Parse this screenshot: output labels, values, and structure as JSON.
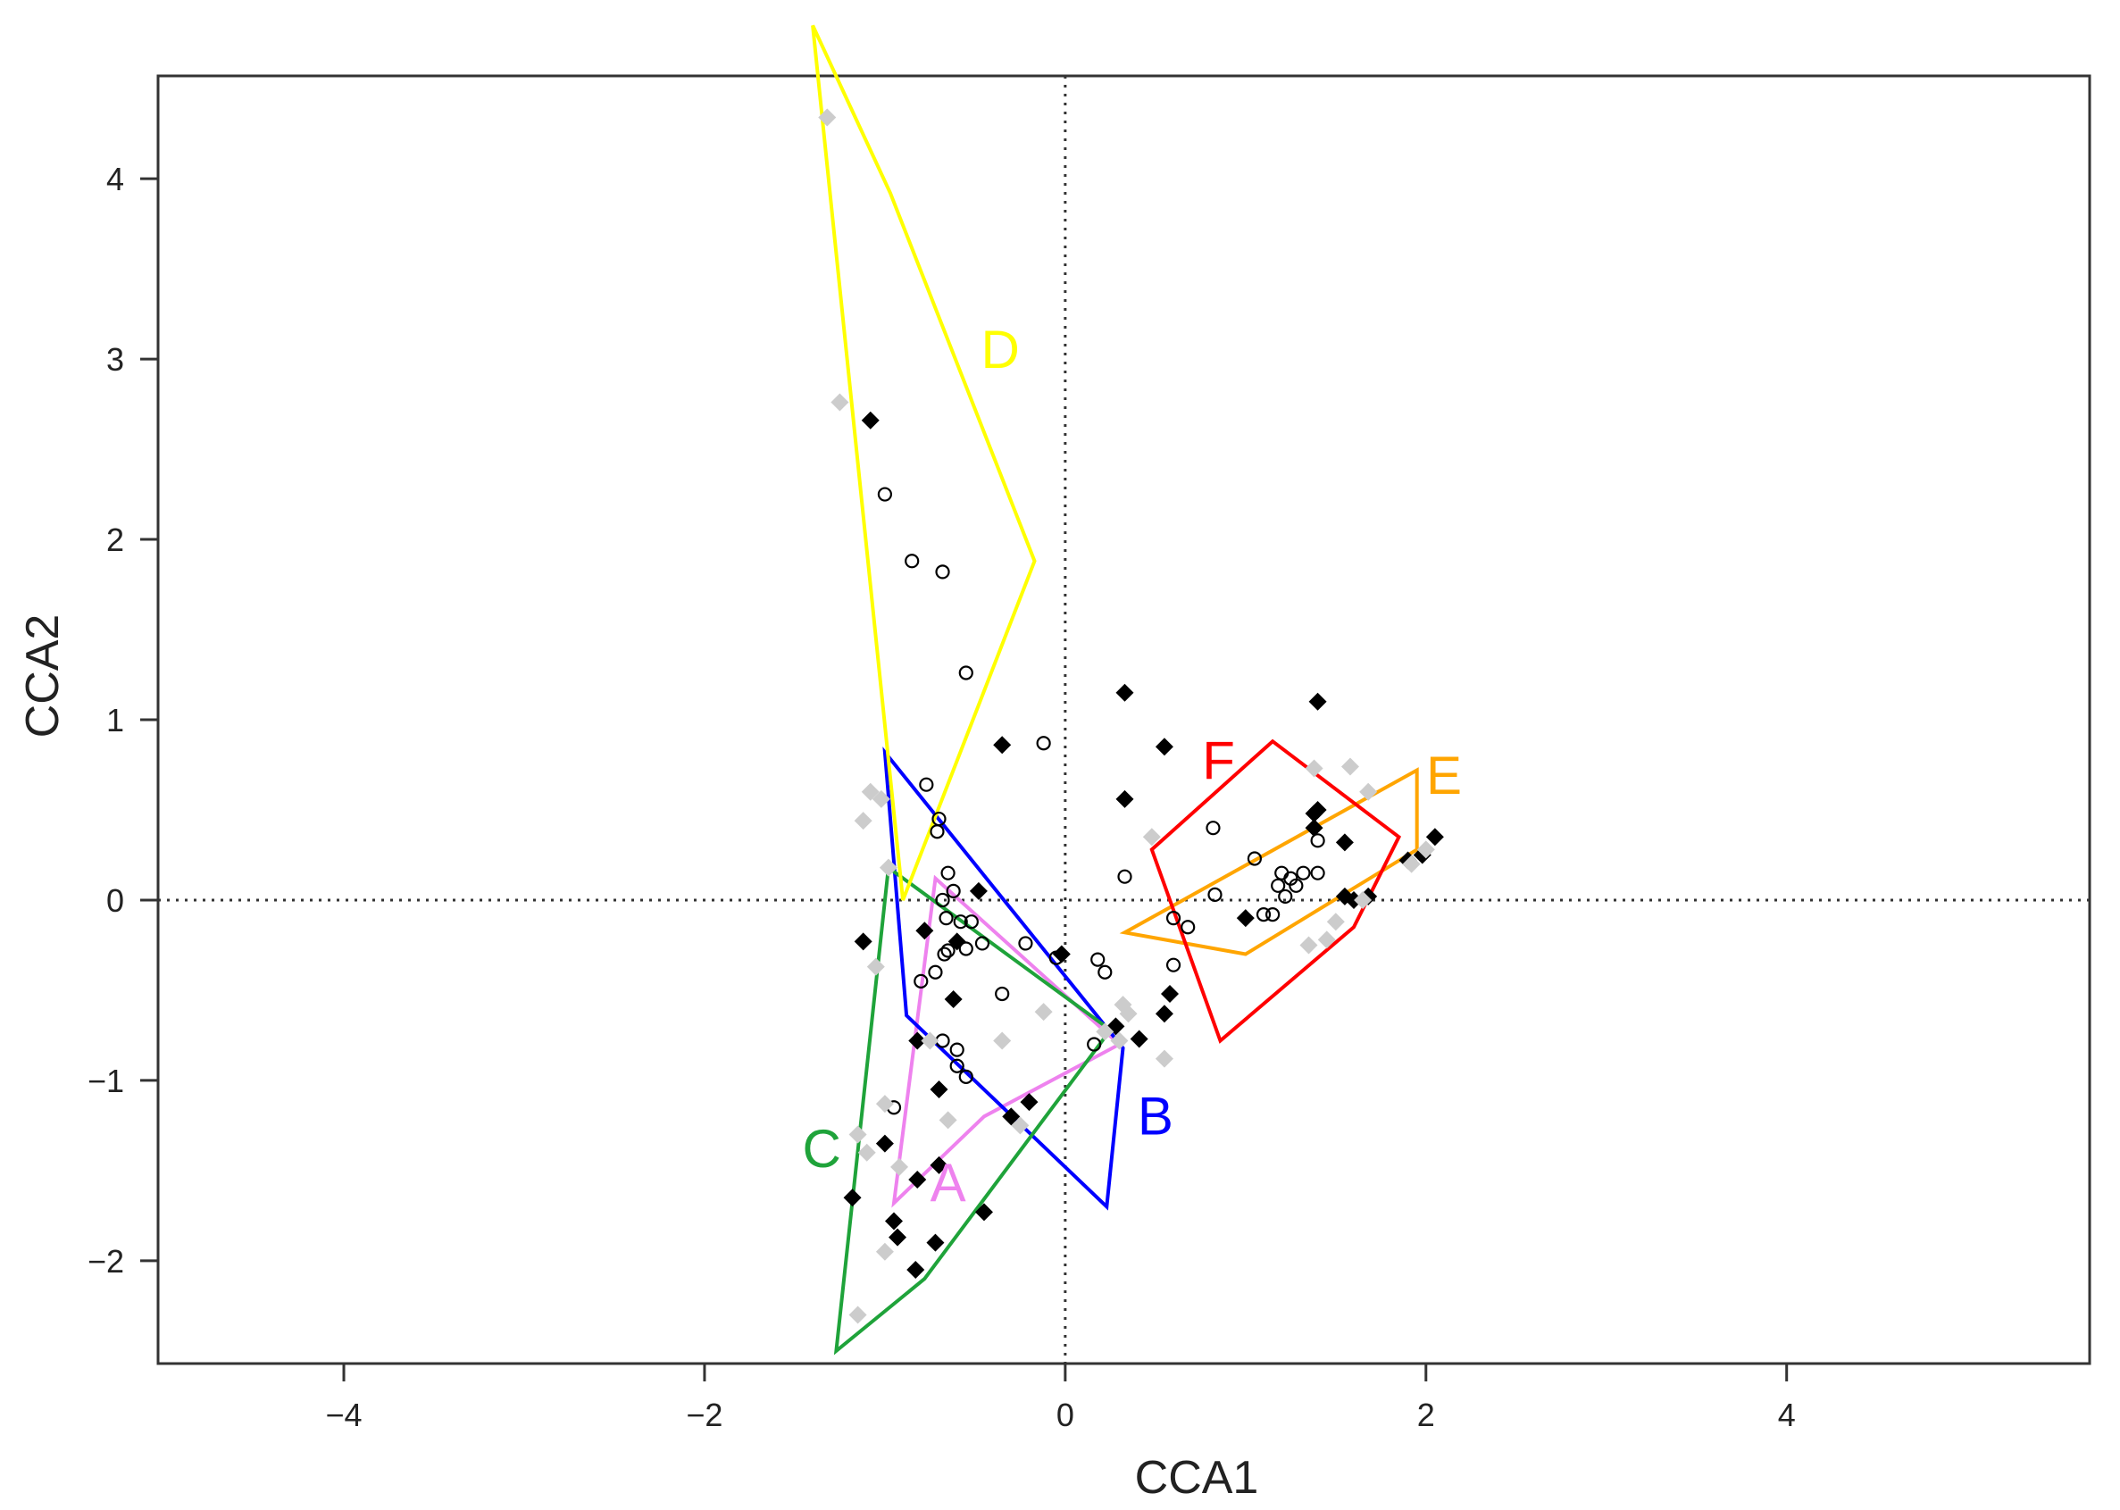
{
  "chart_data": {
    "type": "scatter",
    "title": "",
    "xlabel": "CCA1",
    "ylabel": "CCA2",
    "xlim": [
      -5.03,
      5.68
    ],
    "ylim": [
      -2.57,
      4.57
    ],
    "xticks": [
      -4,
      -2,
      0,
      2,
      4
    ],
    "yticks": [
      -2,
      -1,
      0,
      1,
      2,
      3,
      4
    ],
    "xtick_labels": [
      "−4",
      "−2",
      "0",
      "2",
      "4"
    ],
    "ytick_labels": [
      "−2",
      "−1",
      "0",
      "1",
      "2",
      "3",
      "4"
    ],
    "reference_lines": {
      "x": 0,
      "y": 0,
      "style": "dotted"
    },
    "grid": false,
    "groups": [
      {
        "name": "A",
        "color": "#ee82ee",
        "label_pos": [
          -0.65,
          -1.67
        ],
        "hull": [
          [
            -0.95,
            -1.68
          ],
          [
            -0.72,
            0.12
          ],
          [
            0.3,
            -0.8
          ],
          [
            -0.45,
            -1.2
          ]
        ]
      },
      {
        "name": "B",
        "color": "#0000ff",
        "label_pos": [
          0.5,
          -1.3
        ],
        "hull": [
          [
            -1.0,
            0.82
          ],
          [
            0.32,
            -0.82
          ],
          [
            0.23,
            -1.7
          ],
          [
            -0.88,
            -0.64
          ]
        ]
      },
      {
        "name": "C",
        "color": "#1fa33a",
        "label_pos": [
          -1.35,
          -1.48
        ],
        "hull": [
          [
            -0.98,
            0.18
          ],
          [
            0.25,
            -0.72
          ],
          [
            -0.78,
            -2.1
          ],
          [
            -1.27,
            -2.5
          ]
        ]
      },
      {
        "name": "D",
        "color": "#ffff00",
        "label_pos": [
          -0.36,
          2.95
        ],
        "hull": [
          [
            -1.4,
            4.85
          ],
          [
            -0.97,
            3.92
          ],
          [
            -0.17,
            1.88
          ],
          [
            -0.9,
            0.0
          ]
        ]
      },
      {
        "name": "E",
        "color": "#ffa500",
        "label_pos": [
          2.1,
          0.59
        ],
        "hull": [
          [
            0.33,
            -0.18
          ],
          [
            1.95,
            0.72
          ],
          [
            1.95,
            0.28
          ],
          [
            1.0,
            -0.3
          ]
        ]
      },
      {
        "name": "F",
        "color": "#ff0000",
        "label_pos": [
          0.85,
          0.67
        ],
        "hull": [
          [
            0.48,
            0.28
          ],
          [
            1.15,
            0.88
          ],
          [
            1.85,
            0.35
          ],
          [
            1.6,
            -0.15
          ],
          [
            0.86,
            -0.78
          ]
        ]
      }
    ],
    "series": [
      {
        "name": "filled diamonds",
        "marker": "diamond",
        "color": "#000000",
        "points": [
          [
            -1.08,
            2.66
          ],
          [
            -0.35,
            0.86
          ],
          [
            0.33,
            1.15
          ],
          [
            0.55,
            0.85
          ],
          [
            1.4,
            1.1
          ],
          [
            0.33,
            0.56
          ],
          [
            1.38,
            0.48
          ],
          [
            1.4,
            0.5
          ],
          [
            1.38,
            0.4
          ],
          [
            1.55,
            0.32
          ],
          [
            1.55,
            0.02
          ],
          [
            1.6,
            0.0
          ],
          [
            1.68,
            0.02
          ],
          [
            1.9,
            0.22
          ],
          [
            1.98,
            0.25
          ],
          [
            2.05,
            0.35
          ],
          [
            1.0,
            -0.1
          ],
          [
            0.58,
            -0.52
          ],
          [
            0.55,
            -0.63
          ],
          [
            0.41,
            -0.77
          ],
          [
            0.28,
            -0.7
          ],
          [
            -1.12,
            -0.23
          ],
          [
            -0.78,
            -0.17
          ],
          [
            -0.6,
            -0.23
          ],
          [
            -0.48,
            0.05
          ],
          [
            -0.62,
            -0.55
          ],
          [
            -0.82,
            -0.78
          ],
          [
            -0.7,
            -1.05
          ],
          [
            -0.2,
            -1.12
          ],
          [
            -0.3,
            -1.2
          ],
          [
            -1.0,
            -1.35
          ],
          [
            -0.7,
            -1.47
          ],
          [
            -0.82,
            -1.55
          ],
          [
            -1.18,
            -1.65
          ],
          [
            -0.95,
            -1.78
          ],
          [
            -0.45,
            -1.73
          ],
          [
            -0.93,
            -1.87
          ],
          [
            -0.72,
            -1.9
          ],
          [
            -0.83,
            -2.05
          ],
          [
            -0.02,
            -0.3
          ]
        ]
      },
      {
        "name": "open circles",
        "marker": "circle",
        "color": "#000000",
        "points": [
          [
            -1.0,
            2.25
          ],
          [
            -0.85,
            1.88
          ],
          [
            -0.68,
            1.82
          ],
          [
            -0.55,
            1.26
          ],
          [
            -0.12,
            0.87
          ],
          [
            -0.77,
            0.64
          ],
          [
            -0.7,
            0.45
          ],
          [
            -0.71,
            0.38
          ],
          [
            -0.65,
            0.15
          ],
          [
            -0.62,
            0.05
          ],
          [
            -0.68,
            0.0
          ],
          [
            -0.66,
            -0.1
          ],
          [
            -0.58,
            -0.12
          ],
          [
            -0.52,
            -0.12
          ],
          [
            -0.46,
            -0.24
          ],
          [
            -0.55,
            -0.27
          ],
          [
            -0.65,
            -0.28
          ],
          [
            -0.67,
            -0.3
          ],
          [
            -0.72,
            -0.4
          ],
          [
            -0.8,
            -0.45
          ],
          [
            -0.35,
            -0.52
          ],
          [
            -0.22,
            -0.24
          ],
          [
            -0.05,
            -0.32
          ],
          [
            0.18,
            -0.33
          ],
          [
            0.22,
            -0.4
          ],
          [
            0.33,
            0.13
          ],
          [
            0.6,
            -0.1
          ],
          [
            0.6,
            -0.36
          ],
          [
            0.68,
            -0.15
          ],
          [
            0.82,
            0.4
          ],
          [
            0.83,
            0.03
          ],
          [
            1.05,
            0.23
          ],
          [
            1.1,
            -0.08
          ],
          [
            1.15,
            -0.08
          ],
          [
            1.18,
            0.08
          ],
          [
            1.2,
            0.15
          ],
          [
            1.22,
            0.02
          ],
          [
            1.25,
            0.12
          ],
          [
            1.28,
            0.08
          ],
          [
            1.32,
            0.15
          ],
          [
            1.4,
            0.33
          ],
          [
            1.4,
            0.15
          ],
          [
            -0.68,
            -0.78
          ],
          [
            -0.6,
            -0.83
          ],
          [
            -0.6,
            -0.92
          ],
          [
            -0.55,
            -0.98
          ],
          [
            -0.95,
            -1.15
          ],
          [
            0.16,
            -0.8
          ]
        ]
      },
      {
        "name": "grey diamonds",
        "marker": "diamond",
        "color": "#cccccc",
        "points": [
          [
            -1.32,
            4.34
          ],
          [
            -1.25,
            2.76
          ],
          [
            -1.08,
            0.6
          ],
          [
            -1.12,
            0.44
          ],
          [
            -1.02,
            0.56
          ],
          [
            -0.98,
            0.18
          ],
          [
            -1.05,
            -0.37
          ],
          [
            0.48,
            0.35
          ],
          [
            0.32,
            -0.58
          ],
          [
            0.35,
            -0.63
          ],
          [
            0.55,
            -0.88
          ],
          [
            0.3,
            -0.78
          ],
          [
            0.22,
            -0.73
          ],
          [
            -0.12,
            -0.62
          ],
          [
            -0.35,
            -0.78
          ],
          [
            -0.75,
            -0.78
          ],
          [
            -0.65,
            -1.22
          ],
          [
            -1.0,
            -1.13
          ],
          [
            -1.15,
            -1.3
          ],
          [
            -1.1,
            -1.4
          ],
          [
            -0.92,
            -1.48
          ],
          [
            -1.0,
            -1.95
          ],
          [
            -1.15,
            -2.3
          ],
          [
            -0.25,
            -1.25
          ],
          [
            1.38,
            0.73
          ],
          [
            1.58,
            0.74
          ],
          [
            1.68,
            0.6
          ],
          [
            1.92,
            0.2
          ],
          [
            2.0,
            0.28
          ],
          [
            1.35,
            -0.25
          ],
          [
            1.45,
            -0.22
          ],
          [
            1.5,
            -0.12
          ],
          [
            1.65,
            0.0
          ]
        ]
      }
    ]
  }
}
